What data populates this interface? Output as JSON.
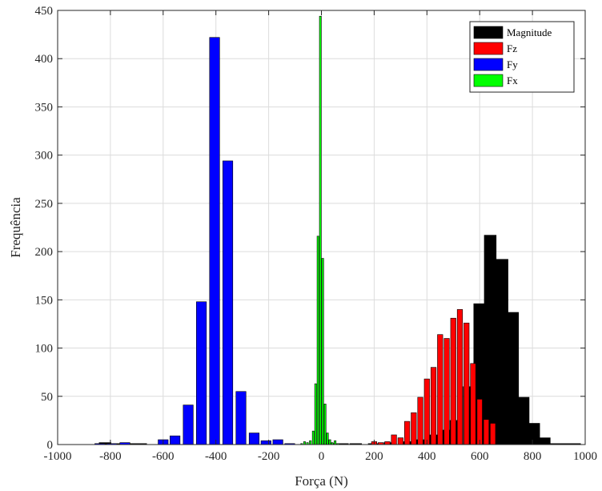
{
  "chart_data": {
    "type": "bar",
    "xlabel": "Força (N)",
    "ylabel": "Frequência",
    "xlim": [
      -1000,
      1000
    ],
    "ylim": [
      0,
      450
    ],
    "xticks": [
      -1000,
      -800,
      -600,
      -400,
      -200,
      0,
      200,
      400,
      600,
      800,
      1000
    ],
    "xtick_labels": [
      "-1000",
      "-800",
      "-600",
      "-400",
      "-200",
      "0",
      "200",
      "400",
      "600",
      "800",
      "1000"
    ],
    "yticks": [
      0,
      50,
      100,
      150,
      200,
      250,
      300,
      350,
      400,
      450
    ],
    "ytick_labels": [
      "0",
      "50",
      "100",
      "150",
      "200",
      "250",
      "300",
      "350",
      "400",
      "450"
    ],
    "grid": true,
    "legend_position": "top-right",
    "series": [
      {
        "name": "Magnitude",
        "color": "#000000",
        "bin_width": 45,
        "bins": [
          [
            -820,
            2
          ],
          [
            -775,
            1
          ],
          [
            -730,
            1
          ],
          [
            -685,
            1
          ],
          [
            30,
            1
          ],
          [
            80,
            1
          ],
          [
            130,
            1
          ],
          [
            200,
            1
          ],
          [
            260,
            2
          ],
          [
            320,
            3
          ],
          [
            380,
            5
          ],
          [
            420,
            10
          ],
          [
            470,
            15
          ],
          [
            510,
            25
          ],
          [
            560,
            60
          ],
          [
            600,
            146
          ],
          [
            640,
            217
          ],
          [
            685,
            192
          ],
          [
            725,
            137
          ],
          [
            765,
            49
          ],
          [
            805,
            22
          ],
          [
            845,
            7
          ],
          [
            880,
            1
          ],
          [
            920,
            1
          ],
          [
            960,
            1
          ]
        ]
      },
      {
        "name": "Fz",
        "color": "#ff0000",
        "bin_width": 20,
        "bins": [
          [
            200,
            3
          ],
          [
            225,
            2
          ],
          [
            250,
            3
          ],
          [
            275,
            10
          ],
          [
            300,
            7
          ],
          [
            325,
            24
          ],
          [
            350,
            33
          ],
          [
            375,
            49
          ],
          [
            400,
            68
          ],
          [
            425,
            80
          ],
          [
            450,
            114
          ],
          [
            475,
            110
          ],
          [
            500,
            131
          ],
          [
            525,
            140
          ],
          [
            550,
            126
          ],
          [
            575,
            84
          ],
          [
            600,
            47
          ],
          [
            625,
            26
          ],
          [
            650,
            22
          ]
        ]
      },
      {
        "name": "Fy",
        "color": "#0000ff",
        "bin_width": 38,
        "bins": [
          [
            -840,
            1
          ],
          [
            -795,
            1
          ],
          [
            -745,
            2
          ],
          [
            -695,
            0
          ],
          [
            -650,
            0
          ],
          [
            -600,
            5
          ],
          [
            -555,
            9
          ],
          [
            -505,
            41
          ],
          [
            -455,
            148
          ],
          [
            -405,
            422
          ],
          [
            -355,
            294
          ],
          [
            -305,
            55
          ],
          [
            -255,
            12
          ],
          [
            -210,
            4
          ],
          [
            -165,
            5
          ],
          [
            -120,
            1
          ],
          [
            -75,
            0
          ]
        ]
      },
      {
        "name": "Fx",
        "color": "#00ff00",
        "bin_width": 7,
        "bins": [
          [
            -75,
            1
          ],
          [
            -64,
            3
          ],
          [
            -53,
            2
          ],
          [
            -42,
            4
          ],
          [
            -31,
            14
          ],
          [
            -22,
            63
          ],
          [
            -13,
            216
          ],
          [
            -4,
            444
          ],
          [
            5,
            193
          ],
          [
            14,
            42
          ],
          [
            23,
            12
          ],
          [
            32,
            5
          ],
          [
            41,
            2
          ],
          [
            52,
            4
          ],
          [
            63,
            1
          ]
        ]
      }
    ]
  }
}
